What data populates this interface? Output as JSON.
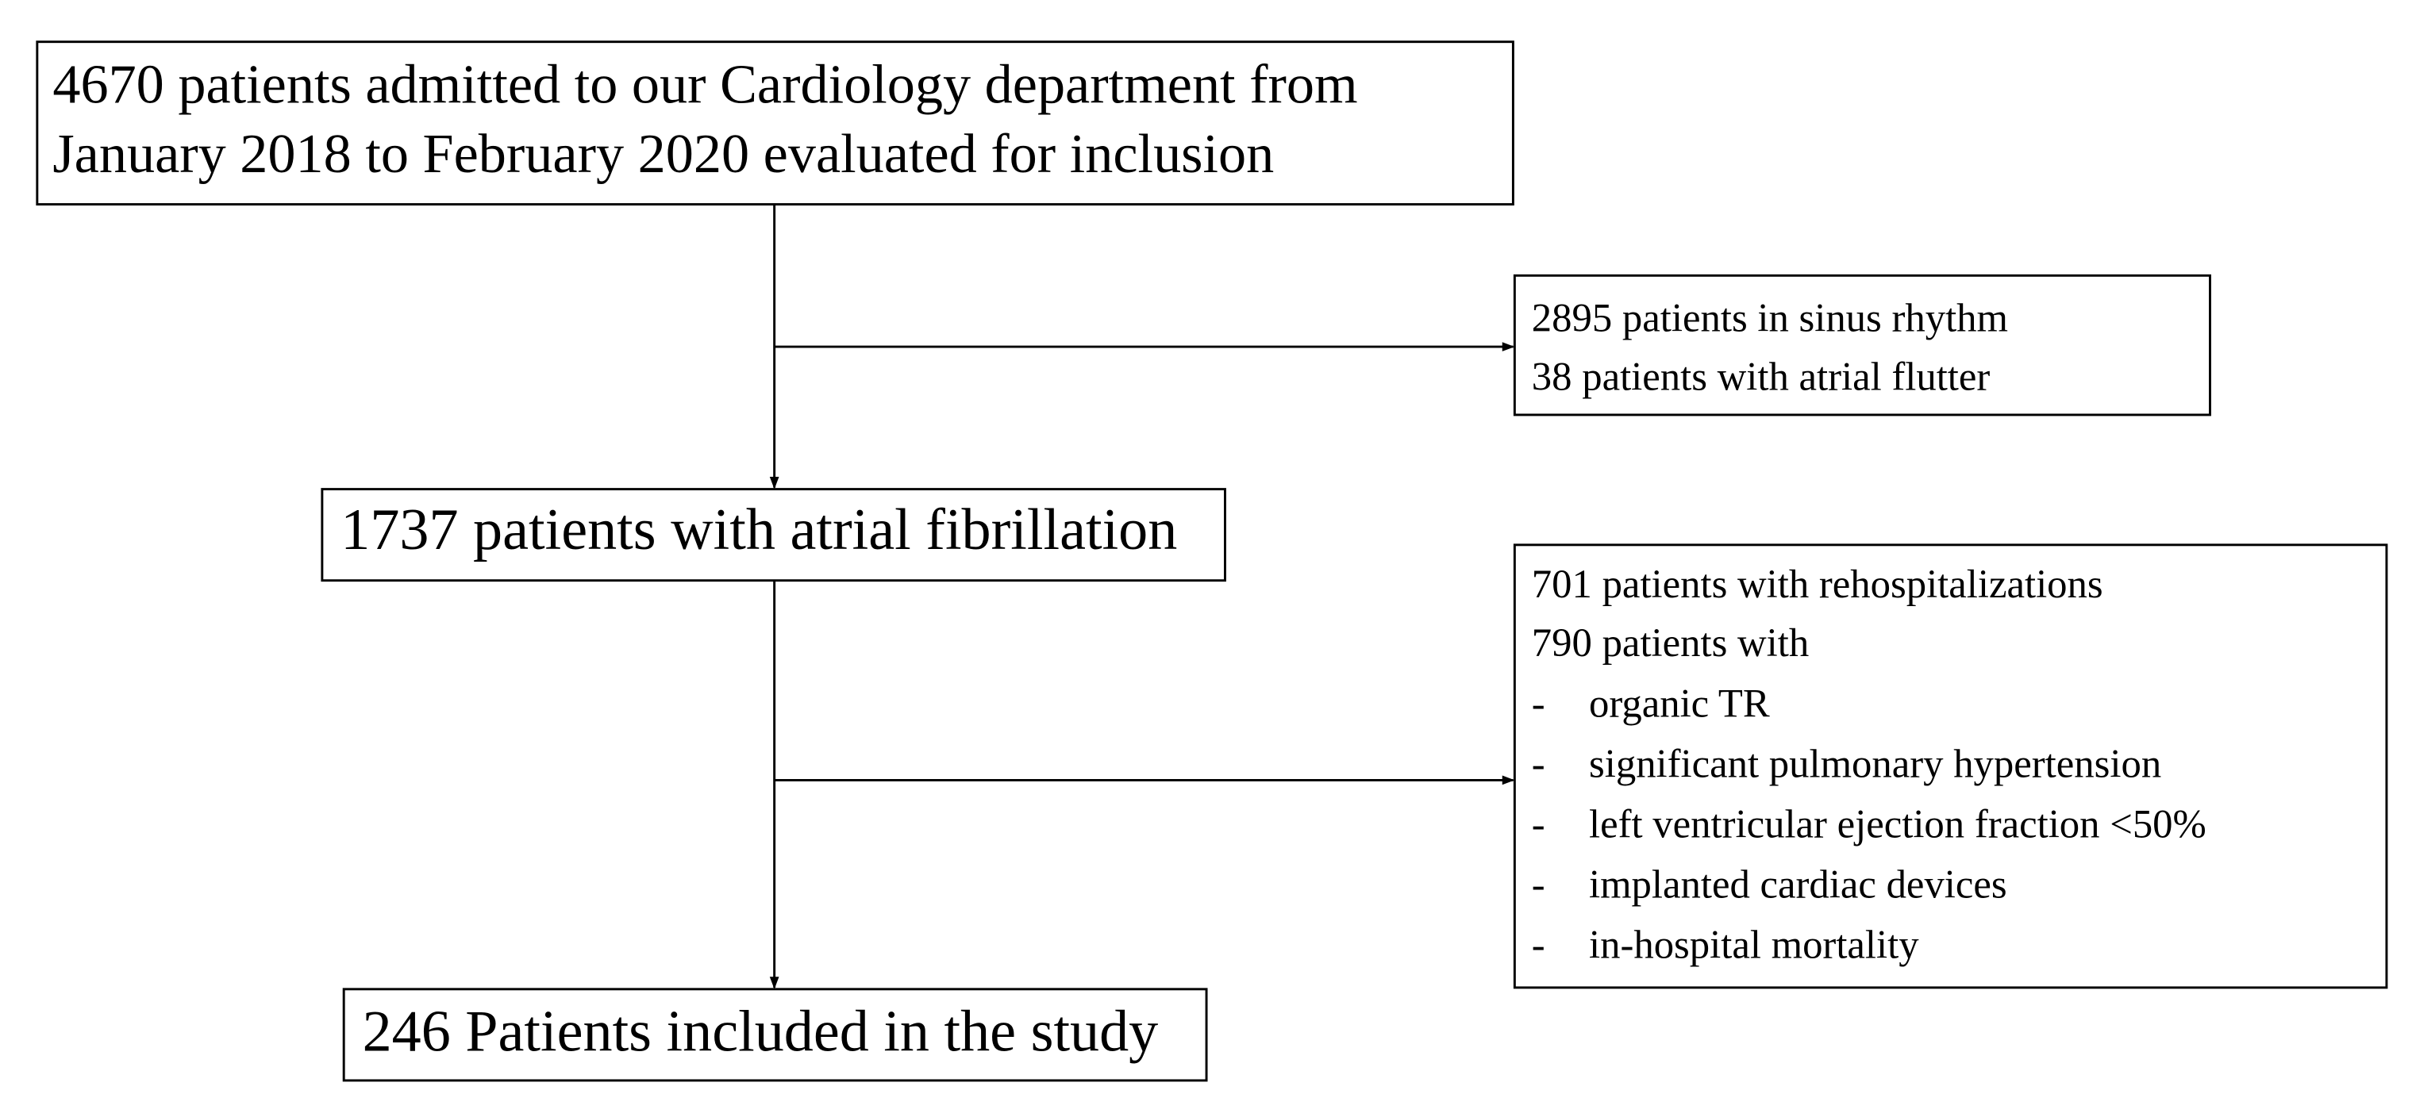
{
  "nodes": [
    {
      "lines": [
        "4670 patients admitted to our Cardiology department from",
        "January 2018 to February 2020 evaluated for inclusion"
      ]
    },
    {
      "lines": [
        "2895 patients in sinus rhythm",
        "38 patients with atrial flutter"
      ]
    },
    {
      "lines": [
        "1737 patients with atrial fibrillation"
      ]
    },
    {
      "lines": [
        "701 patients with rehospitalizations",
        "790 patients with"
      ],
      "items": [
        "organic TR",
        "significant pulmonary hypertension",
        "left ventricular ejection fraction <50%",
        "implanted cardiac devices",
        "in-hospital mortality"
      ]
    },
    {
      "lines": [
        "246 Patients included in the study"
      ]
    }
  ]
}
